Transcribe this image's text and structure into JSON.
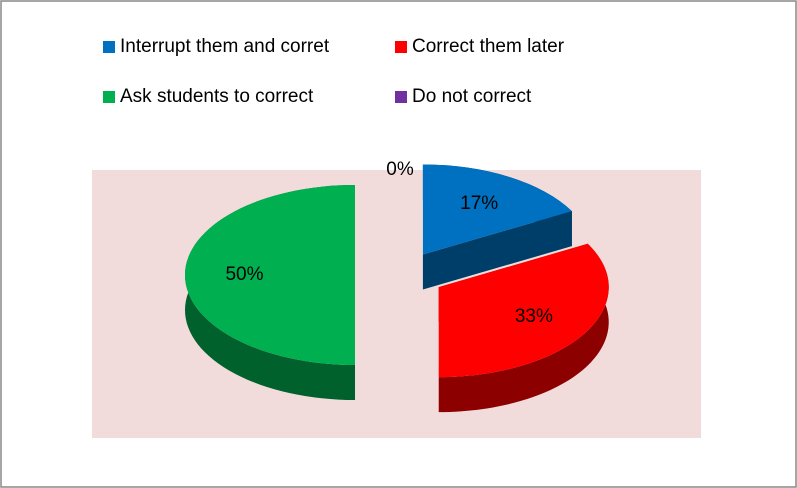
{
  "chart_data": {
    "type": "pie",
    "categories": [
      "Interrupt them and corret",
      "Correct them later",
      "Ask students to correct",
      "Do not correct"
    ],
    "values": [
      17,
      33,
      50,
      0
    ],
    "value_labels": [
      "17%",
      "33%",
      "50%",
      "0%"
    ],
    "colors": [
      "#0070c0",
      "#ff0000",
      "#00b050",
      "#7030a0"
    ],
    "legend": "top"
  }
}
